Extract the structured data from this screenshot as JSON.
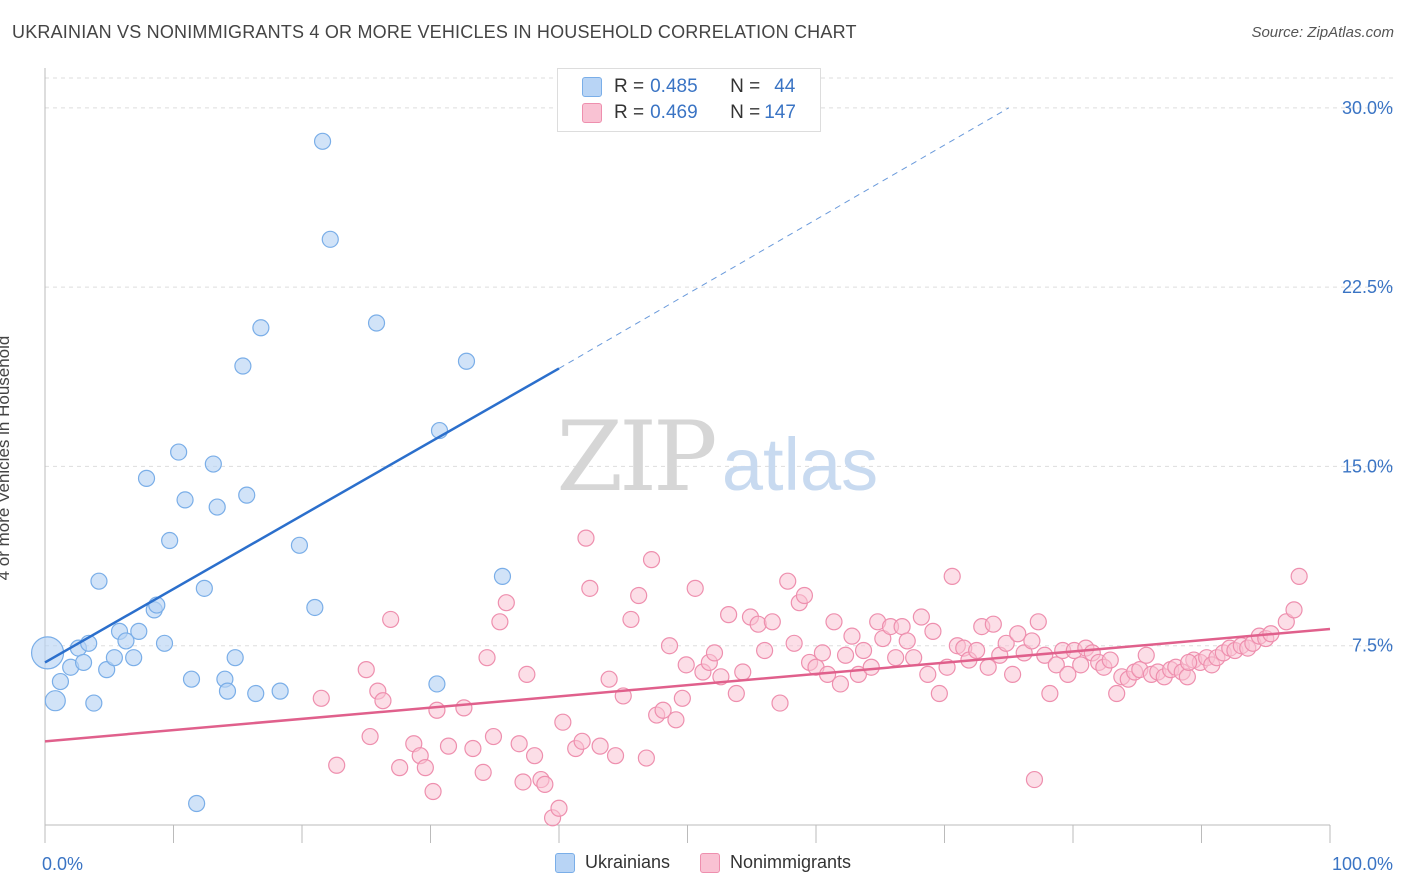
{
  "header": {
    "title": "UKRAINIAN VS NONIMMIGRANTS 4 OR MORE VEHICLES IN HOUSEHOLD CORRELATION CHART",
    "source": "Source: ZipAtlas.com"
  },
  "watermark": {
    "zip": "ZIP",
    "atlas": "atlas"
  },
  "legend": {
    "row1": {
      "r_label": "R = ",
      "r_value": "0.485",
      "n_label": "N = ",
      "n_value": "44"
    },
    "row2": {
      "r_label": "R = ",
      "r_value": "0.469",
      "n_label": "N = ",
      "n_value": "147"
    }
  },
  "colors": {
    "blue_fill": "#b8d4f5",
    "blue_stroke": "#7aaee8",
    "blue_line": "#2b6fcc",
    "pink_fill": "#f9c2d3",
    "pink_stroke": "#ee8fae",
    "pink_line": "#e0608c",
    "axis_text": "#3a74c4",
    "grid": "#dddddd"
  },
  "chart_data": {
    "type": "scatter",
    "title": "UKRAINIAN VS NONIMMIGRANTS 4 OR MORE VEHICLES IN HOUSEHOLD CORRELATION CHART",
    "xlabel": "",
    "ylabel": "4 or more Vehicles in Household",
    "xlim": [
      0,
      100
    ],
    "ylim": [
      0,
      31.5
    ],
    "x_tick_labels": [
      "0.0%",
      "100.0%"
    ],
    "y_ticks": [
      7.5,
      15.0,
      22.5,
      30.0
    ],
    "y_tick_labels": [
      "7.5%",
      "15.0%",
      "22.5%",
      "30.0%"
    ],
    "grid": true,
    "legend_position": "top-center",
    "series": [
      {
        "name": "Ukrainians",
        "trend": {
          "x0": 0,
          "y0": 6.8,
          "x1": 40,
          "y1": 19.1,
          "dash_to_x": 75,
          "dash_to_y": 30.0
        },
        "points": [
          [
            0.2,
            7.2,
            16
          ],
          [
            0.8,
            5.2,
            10
          ],
          [
            1.2,
            6.0,
            8
          ],
          [
            2.0,
            6.6,
            8
          ],
          [
            2.6,
            7.4,
            8
          ],
          [
            3.0,
            6.8,
            8
          ],
          [
            3.4,
            7.6,
            8
          ],
          [
            3.8,
            5.1,
            8
          ],
          [
            4.2,
            10.2,
            8
          ],
          [
            4.8,
            6.5,
            8
          ],
          [
            5.4,
            7.0,
            8
          ],
          [
            5.8,
            8.1,
            8
          ],
          [
            6.3,
            7.7,
            8
          ],
          [
            6.9,
            7.0,
            8
          ],
          [
            7.3,
            8.1,
            8
          ],
          [
            7.9,
            14.5,
            8
          ],
          [
            8.5,
            9.0,
            8
          ],
          [
            8.7,
            9.2,
            8
          ],
          [
            9.3,
            7.6,
            8
          ],
          [
            9.7,
            11.9,
            8
          ],
          [
            10.4,
            15.6,
            8
          ],
          [
            10.9,
            13.6,
            8
          ],
          [
            11.4,
            6.1,
            8
          ],
          [
            11.8,
            0.9,
            8
          ],
          [
            12.4,
            9.9,
            8
          ],
          [
            13.1,
            15.1,
            8
          ],
          [
            13.4,
            13.3,
            8
          ],
          [
            14.0,
            6.1,
            8
          ],
          [
            14.2,
            5.6,
            8
          ],
          [
            14.8,
            7.0,
            8
          ],
          [
            15.4,
            19.2,
            8
          ],
          [
            15.7,
            13.8,
            8
          ],
          [
            16.4,
            5.5,
            8
          ],
          [
            16.8,
            20.8,
            8
          ],
          [
            18.3,
            5.6,
            8
          ],
          [
            19.8,
            11.7,
            8
          ],
          [
            21.0,
            9.1,
            8
          ],
          [
            21.6,
            28.6,
            8
          ],
          [
            22.2,
            24.5,
            8
          ],
          [
            25.8,
            21.0,
            8
          ],
          [
            30.5,
            5.9,
            8
          ],
          [
            30.7,
            16.5,
            8
          ],
          [
            32.8,
            19.4,
            8
          ],
          [
            35.6,
            10.4,
            8
          ]
        ]
      },
      {
        "name": "Nonimmigrants",
        "trend": {
          "x0": 0,
          "y0": 3.5,
          "x1": 100,
          "y1": 8.2
        },
        "points": [
          [
            21.5,
            5.3
          ],
          [
            22.7,
            2.5
          ],
          [
            25.0,
            6.5
          ],
          [
            25.3,
            3.7
          ],
          [
            25.9,
            5.6
          ],
          [
            26.3,
            5.2
          ],
          [
            26.9,
            8.6
          ],
          [
            27.6,
            2.4
          ],
          [
            28.7,
            3.4
          ],
          [
            29.2,
            2.9
          ],
          [
            29.6,
            2.4
          ],
          [
            30.2,
            1.4
          ],
          [
            30.5,
            4.8
          ],
          [
            31.4,
            3.3
          ],
          [
            32.6,
            4.9
          ],
          [
            33.3,
            3.2
          ],
          [
            34.1,
            2.2
          ],
          [
            34.4,
            7.0
          ],
          [
            34.9,
            3.7
          ],
          [
            35.4,
            8.5
          ],
          [
            35.9,
            9.3
          ],
          [
            36.9,
            3.4
          ],
          [
            37.2,
            1.8
          ],
          [
            37.5,
            6.3
          ],
          [
            38.1,
            2.9
          ],
          [
            38.6,
            1.9
          ],
          [
            38.9,
            1.7
          ],
          [
            39.5,
            0.3
          ],
          [
            40.0,
            0.7
          ],
          [
            40.3,
            4.3
          ],
          [
            41.3,
            3.2
          ],
          [
            41.8,
            3.5
          ],
          [
            42.1,
            12.0
          ],
          [
            42.4,
            9.9
          ],
          [
            43.2,
            3.3
          ],
          [
            43.9,
            6.1
          ],
          [
            44.4,
            2.9
          ],
          [
            45.0,
            5.4
          ],
          [
            45.6,
            8.6
          ],
          [
            46.2,
            9.6
          ],
          [
            46.8,
            2.8
          ],
          [
            47.2,
            11.1
          ],
          [
            47.6,
            4.6
          ],
          [
            48.1,
            4.8
          ],
          [
            48.6,
            7.5
          ],
          [
            49.1,
            4.4
          ],
          [
            49.6,
            5.3
          ],
          [
            49.9,
            6.7
          ],
          [
            50.6,
            9.9
          ],
          [
            51.2,
            6.4
          ],
          [
            51.7,
            6.8
          ],
          [
            52.1,
            7.2
          ],
          [
            52.6,
            6.2
          ],
          [
            53.2,
            8.8
          ],
          [
            53.8,
            5.5
          ],
          [
            54.3,
            6.4
          ],
          [
            54.9,
            8.7
          ],
          [
            55.5,
            8.4
          ],
          [
            56.0,
            7.3
          ],
          [
            56.6,
            8.5
          ],
          [
            57.2,
            5.1
          ],
          [
            57.8,
            10.2
          ],
          [
            58.3,
            7.6
          ],
          [
            58.7,
            9.3
          ],
          [
            59.1,
            9.6
          ],
          [
            59.5,
            6.8
          ],
          [
            60.0,
            6.6
          ],
          [
            60.5,
            7.2
          ],
          [
            60.9,
            6.3
          ],
          [
            61.4,
            8.5
          ],
          [
            61.9,
            5.9
          ],
          [
            62.3,
            7.1
          ],
          [
            62.8,
            7.9
          ],
          [
            63.3,
            6.3
          ],
          [
            63.7,
            7.3
          ],
          [
            64.3,
            6.6
          ],
          [
            64.8,
            8.5
          ],
          [
            65.2,
            7.8
          ],
          [
            65.8,
            8.3
          ],
          [
            66.2,
            7.0
          ],
          [
            66.7,
            8.3
          ],
          [
            67.1,
            7.7
          ],
          [
            67.6,
            7.0
          ],
          [
            68.2,
            8.7
          ],
          [
            68.7,
            6.3
          ],
          [
            69.1,
            8.1
          ],
          [
            69.6,
            5.5
          ],
          [
            70.2,
            6.6
          ],
          [
            70.6,
            10.4
          ],
          [
            71.0,
            7.5
          ],
          [
            71.5,
            7.4
          ],
          [
            71.9,
            6.9
          ],
          [
            72.5,
            7.3
          ],
          [
            72.9,
            8.3
          ],
          [
            73.4,
            6.6
          ],
          [
            73.8,
            8.4
          ],
          [
            74.3,
            7.1
          ],
          [
            74.8,
            7.6
          ],
          [
            75.3,
            6.3
          ],
          [
            75.7,
            8.0
          ],
          [
            76.2,
            7.2
          ],
          [
            76.8,
            7.7
          ],
          [
            77.3,
            8.5
          ],
          [
            77.8,
            7.1
          ],
          [
            78.2,
            5.5
          ],
          [
            78.7,
            6.7
          ],
          [
            79.2,
            7.3
          ],
          [
            79.6,
            6.3
          ],
          [
            80.1,
            7.3
          ],
          [
            80.6,
            6.7
          ],
          [
            81.0,
            7.4
          ],
          [
            81.5,
            7.2
          ],
          [
            82.0,
            6.8
          ],
          [
            82.4,
            6.6
          ],
          [
            82.9,
            6.9
          ],
          [
            83.4,
            5.5
          ],
          [
            83.8,
            6.2
          ],
          [
            84.3,
            6.1
          ],
          [
            84.8,
            6.4
          ],
          [
            85.2,
            6.5
          ],
          [
            85.7,
            7.1
          ],
          [
            86.1,
            6.3
          ],
          [
            86.6,
            6.4
          ],
          [
            87.1,
            6.2
          ],
          [
            87.6,
            6.5
          ],
          [
            88.0,
            6.6
          ],
          [
            88.5,
            6.4
          ],
          [
            88.9,
            6.2
          ],
          [
            89.4,
            6.9
          ],
          [
            89.9,
            6.8
          ],
          [
            90.4,
            7.0
          ],
          [
            90.8,
            6.7
          ],
          [
            91.2,
            7.0
          ],
          [
            91.7,
            7.2
          ],
          [
            92.2,
            7.4
          ],
          [
            92.6,
            7.3
          ],
          [
            93.1,
            7.5
          ],
          [
            93.6,
            7.4
          ],
          [
            94.0,
            7.6
          ],
          [
            94.5,
            7.9
          ],
          [
            95.0,
            7.8
          ],
          [
            95.4,
            8.0
          ],
          [
            96.6,
            8.5
          ],
          [
            97.2,
            9.0
          ],
          [
            97.6,
            10.4
          ]
        ],
        "large_points": [
          [
            77.0,
            1.9
          ],
          [
            89.0,
            6.8
          ]
        ]
      }
    ]
  }
}
